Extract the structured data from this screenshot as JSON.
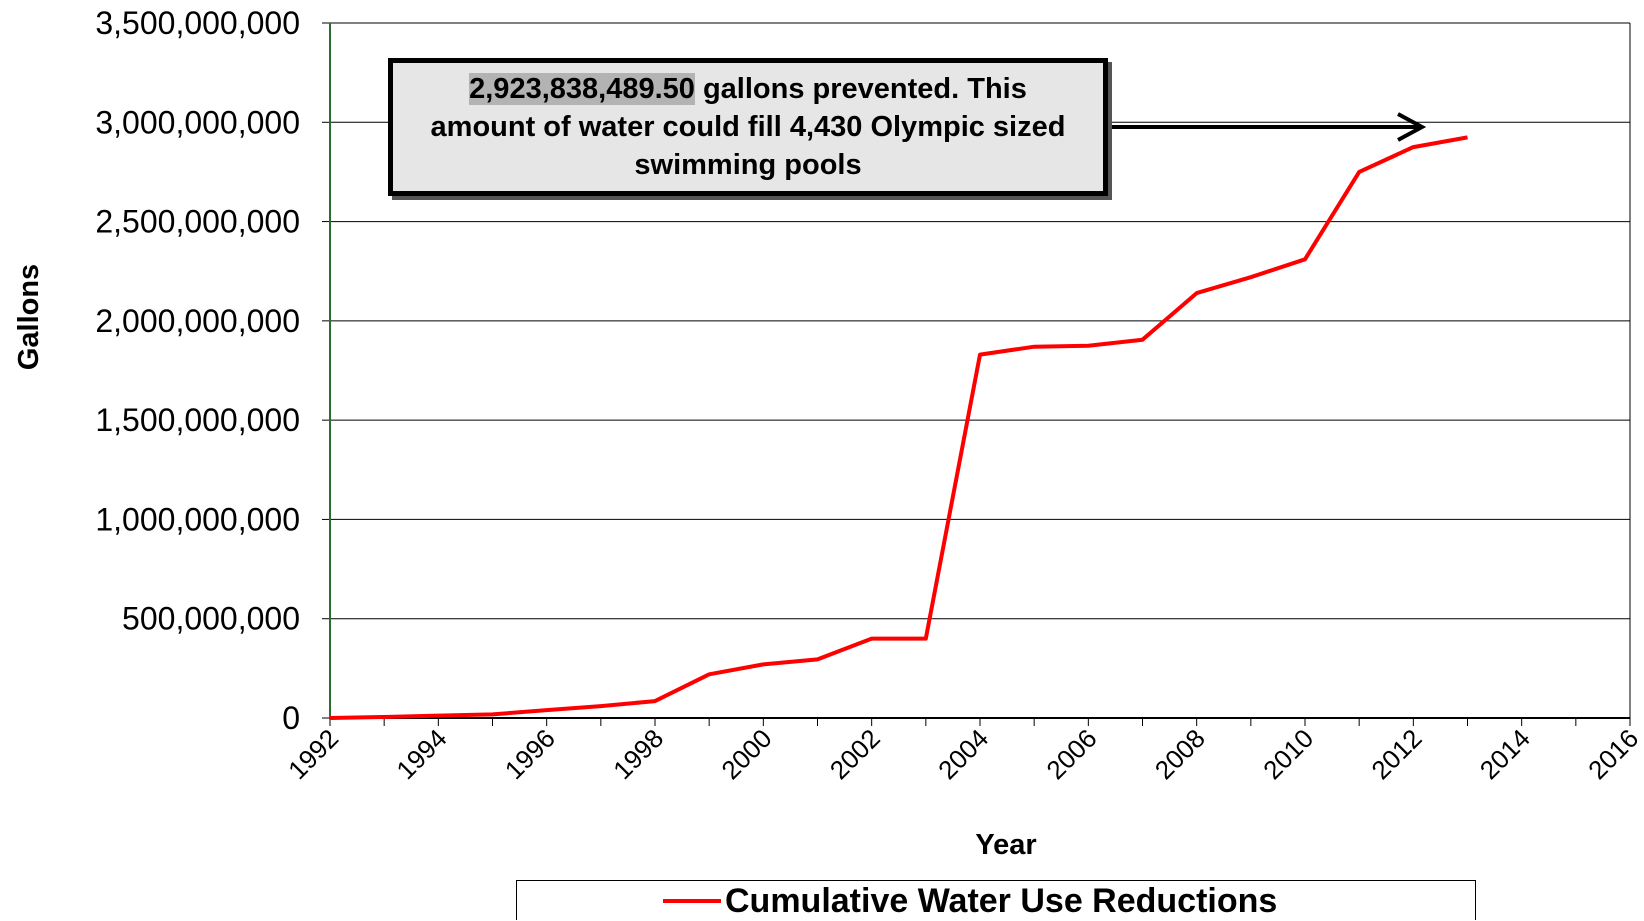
{
  "chart_data": {
    "type": "line",
    "xlabel": "Year",
    "ylabel": "Gallons",
    "xlim": [
      1992,
      2016
    ],
    "ylim": [
      0,
      3500000000
    ],
    "x_ticks": [
      "1992",
      "1994",
      "1996",
      "1998",
      "2000",
      "2002",
      "2004",
      "2006",
      "2008",
      "2010",
      "2012",
      "2014",
      "2016"
    ],
    "y_ticks": [
      "0",
      "500,000,000",
      "1,000,000,000",
      "1,500,000,000",
      "2,000,000,000",
      "2,500,000,000",
      "3,000,000,000",
      "3,500,000,000"
    ],
    "grid": "horizontal",
    "legend_position": "bottom",
    "series": [
      {
        "name": "Cumulative Water Use Reductions",
        "color": "#ff0000",
        "x": [
          1992,
          1993,
          1994,
          1995,
          1996,
          1997,
          1998,
          1999,
          2000,
          2001,
          2002,
          2003,
          2004,
          2005,
          2006,
          2007,
          2008,
          2009,
          2010,
          2011,
          2012,
          2013
        ],
        "y": [
          0,
          5000000,
          12000000,
          18000000,
          40000000,
          60000000,
          85000000,
          220000000,
          270000000,
          295000000,
          400000000,
          400000000,
          1830000000,
          1870000000,
          1875000000,
          1905000000,
          2140000000,
          2220000000,
          2310000000,
          2750000000,
          2875000000,
          2923838489.5
        ]
      }
    ],
    "annotation": {
      "highlight": "2,923,838,489.50",
      "text": " gallons prevented. This amount of water could fill 4,430 Olympic sized swimming pools"
    }
  }
}
